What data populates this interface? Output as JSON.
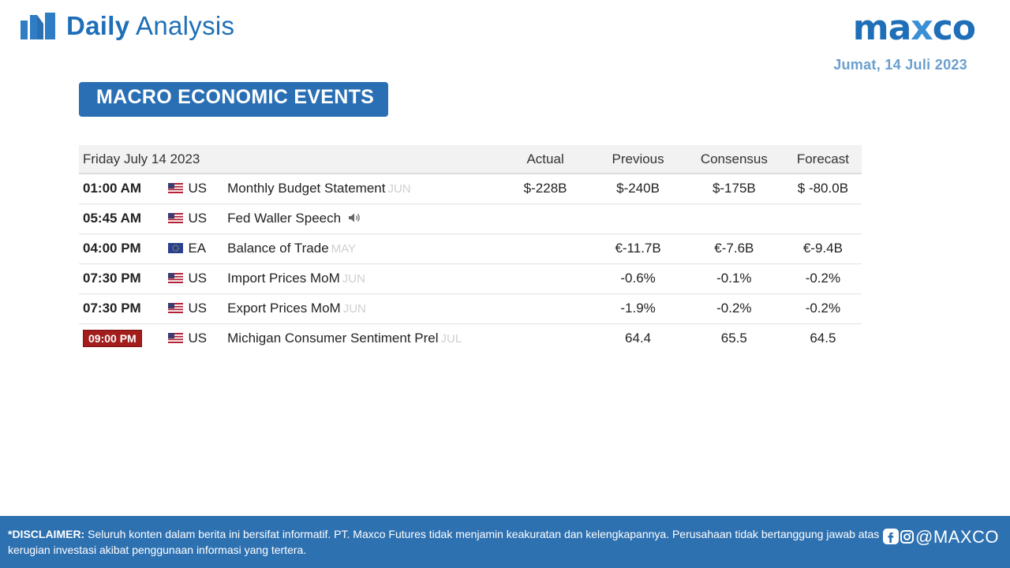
{
  "header": {
    "brand_bold": "Daily",
    "brand_light": "Analysis",
    "logo_left": "ma",
    "logo_x": "x",
    "logo_right": "co",
    "date": "Jumat, 14  Juli 2023"
  },
  "banner": {
    "title": "MACRO ECONOMIC EVENTS"
  },
  "table": {
    "date_header": "Friday July 14 2023",
    "headers": {
      "actual": "Actual",
      "previous": "Previous",
      "consensus": "Consensus",
      "forecast": "Forecast"
    },
    "rows": [
      {
        "time": "01:00 AM",
        "country": "US",
        "event": "Monthly Budget Statement",
        "period": "JUN",
        "actual": "$-228B",
        "previous": "$-240B",
        "consensus": "$-175B",
        "forecast": "$ -80.0B"
      },
      {
        "time": "05:45 AM",
        "country": "US",
        "event": "Fed Waller Speech",
        "period": "",
        "actual": "",
        "previous": "",
        "consensus": "",
        "forecast": ""
      },
      {
        "time": "04:00 PM",
        "country": "EA",
        "event": "Balance of Trade",
        "period": "MAY",
        "actual": "",
        "previous": "€-11.7B",
        "consensus": "€-7.6B",
        "forecast": "€-9.4B"
      },
      {
        "time": "07:30 PM",
        "country": "US",
        "event": "Import Prices MoM",
        "period": "JUN",
        "actual": "",
        "previous": "-0.6%",
        "consensus": "-0.1%",
        "forecast": "-0.2%"
      },
      {
        "time": "07:30 PM",
        "country": "US",
        "event": "Export Prices MoM",
        "period": "JUN",
        "actual": "",
        "previous": "-1.9%",
        "consensus": "-0.2%",
        "forecast": "-0.2%"
      },
      {
        "time": "09:00 PM",
        "country": "US",
        "event": "Michigan Consumer Sentiment Prel",
        "period": "JUL",
        "actual": "",
        "previous": "64.4",
        "consensus": "65.5",
        "forecast": "64.5"
      }
    ]
  },
  "footer": {
    "label": "*DISCLAIMER:",
    "line1": "Seluruh konten dalam berita ini bersifat informatif. PT. Maxco Futures tidak menjamin keakuratan dan kelengkapannya. Perusahaan tidak bertanggung jawab atas",
    "line2": "kerugian investasi akibat penggunaan informasi yang tertera.",
    "social_handle": "@MAXCO"
  },
  "colors": {
    "brand_blue": "#1e6fb8",
    "banner_blue": "#2a6fb3",
    "negative_red": "#8b1a1a",
    "positive_green": "#2e7d32",
    "highlight_time_bg": "#a31d1d"
  },
  "icons": {
    "brand": "bar-chart-icon",
    "flag_us": "us-flag-icon",
    "flag_ea": "eu-flag-icon",
    "speech": "speaker-icon",
    "social": "facebook-instagram-icon"
  }
}
